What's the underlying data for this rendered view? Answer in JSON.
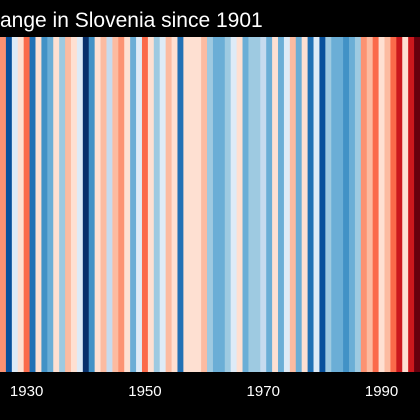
{
  "colors": {
    "background": "#000000",
    "text": "#ffffff"
  },
  "chart_data": {
    "type": "heatmap",
    "title": "ange in Slovenia since 1901",
    "x_axis_tick_labels": [
      "1930",
      "1950",
      "1970",
      "1990"
    ],
    "x_range": [
      1926,
      1996
    ],
    "grid": false,
    "legend": "none",
    "stripes": [
      {
        "year": 1926,
        "color": "#fc9272"
      },
      {
        "year": 1927,
        "color": "#08519c"
      },
      {
        "year": 1928,
        "color": "#deebf7"
      },
      {
        "year": 1929,
        "color": "#fee0d2"
      },
      {
        "year": 1930,
        "color": "#fb6a4a"
      },
      {
        "year": 1931,
        "color": "#2171b5"
      },
      {
        "year": 1932,
        "color": "#fee0d2"
      },
      {
        "year": 1933,
        "color": "#4292c6"
      },
      {
        "year": 1934,
        "color": "#6baed6"
      },
      {
        "year": 1935,
        "color": "#fee0d2"
      },
      {
        "year": 1936,
        "color": "#9ecae1"
      },
      {
        "year": 1937,
        "color": "#fcbba1"
      },
      {
        "year": 1938,
        "color": "#fee0d2"
      },
      {
        "year": 1939,
        "color": "#deebf7"
      },
      {
        "year": 1940,
        "color": "#08306b"
      },
      {
        "year": 1941,
        "color": "#4292c6"
      },
      {
        "year": 1942,
        "color": "#fee0d2"
      },
      {
        "year": 1943,
        "color": "#fcbba1"
      },
      {
        "year": 1944,
        "color": "#c6dbef"
      },
      {
        "year": 1945,
        "color": "#fcbba1"
      },
      {
        "year": 1946,
        "color": "#fc9272"
      },
      {
        "year": 1947,
        "color": "#fee0d2"
      },
      {
        "year": 1948,
        "color": "#6baed6"
      },
      {
        "year": 1949,
        "color": "#deebf7"
      },
      {
        "year": 1950,
        "color": "#fb6a4a"
      },
      {
        "year": 1951,
        "color": "#fee0d2"
      },
      {
        "year": 1952,
        "color": "#9ecae1"
      },
      {
        "year": 1953,
        "color": "#deebf7"
      },
      {
        "year": 1954,
        "color": "#fcbba1"
      },
      {
        "year": 1955,
        "color": "#fee0d2"
      },
      {
        "year": 1956,
        "color": "#2171b5"
      },
      {
        "year": 1957,
        "color": "#fee0d2"
      },
      {
        "year": 1958,
        "color": "#fee0d2"
      },
      {
        "year": 1959,
        "color": "#fee0d2"
      },
      {
        "year": 1960,
        "color": "#fcbba1"
      },
      {
        "year": 1961,
        "color": "#9ecae1"
      },
      {
        "year": 1962,
        "color": "#6baed6"
      },
      {
        "year": 1963,
        "color": "#6baed6"
      },
      {
        "year": 1964,
        "color": "#9ecae1"
      },
      {
        "year": 1965,
        "color": "#deebf7"
      },
      {
        "year": 1966,
        "color": "#fee0d2"
      },
      {
        "year": 1967,
        "color": "#6baed6"
      },
      {
        "year": 1968,
        "color": "#9ecae1"
      },
      {
        "year": 1969,
        "color": "#9ecae1"
      },
      {
        "year": 1970,
        "color": "#c6dbef"
      },
      {
        "year": 1971,
        "color": "#6baed6"
      },
      {
        "year": 1972,
        "color": "#fee0d2"
      },
      {
        "year": 1973,
        "color": "#6baed6"
      },
      {
        "year": 1974,
        "color": "#deebf7"
      },
      {
        "year": 1975,
        "color": "#fcbba1"
      },
      {
        "year": 1976,
        "color": "#6baed6"
      },
      {
        "year": 1977,
        "color": "#fee0d2"
      },
      {
        "year": 1978,
        "color": "#2171b5"
      },
      {
        "year": 1979,
        "color": "#deebf7"
      },
      {
        "year": 1980,
        "color": "#08519c"
      },
      {
        "year": 1981,
        "color": "#9ecae1"
      },
      {
        "year": 1982,
        "color": "#6baed6"
      },
      {
        "year": 1983,
        "color": "#6baed6"
      },
      {
        "year": 1984,
        "color": "#4292c6"
      },
      {
        "year": 1985,
        "color": "#6baed6"
      },
      {
        "year": 1986,
        "color": "#9ecae1"
      },
      {
        "year": 1987,
        "color": "#fc9272"
      },
      {
        "year": 1988,
        "color": "#fcbba1"
      },
      {
        "year": 1989,
        "color": "#fb6a4a"
      },
      {
        "year": 1990,
        "color": "#fee0d2"
      },
      {
        "year": 1991,
        "color": "#fcbba1"
      },
      {
        "year": 1992,
        "color": "#fb6a4a"
      },
      {
        "year": 1993,
        "color": "#cb181d"
      },
      {
        "year": 1994,
        "color": "#fee0d2"
      },
      {
        "year": 1995,
        "color": "#cb181d"
      },
      {
        "year": 1996,
        "color": "#67000d"
      }
    ]
  }
}
